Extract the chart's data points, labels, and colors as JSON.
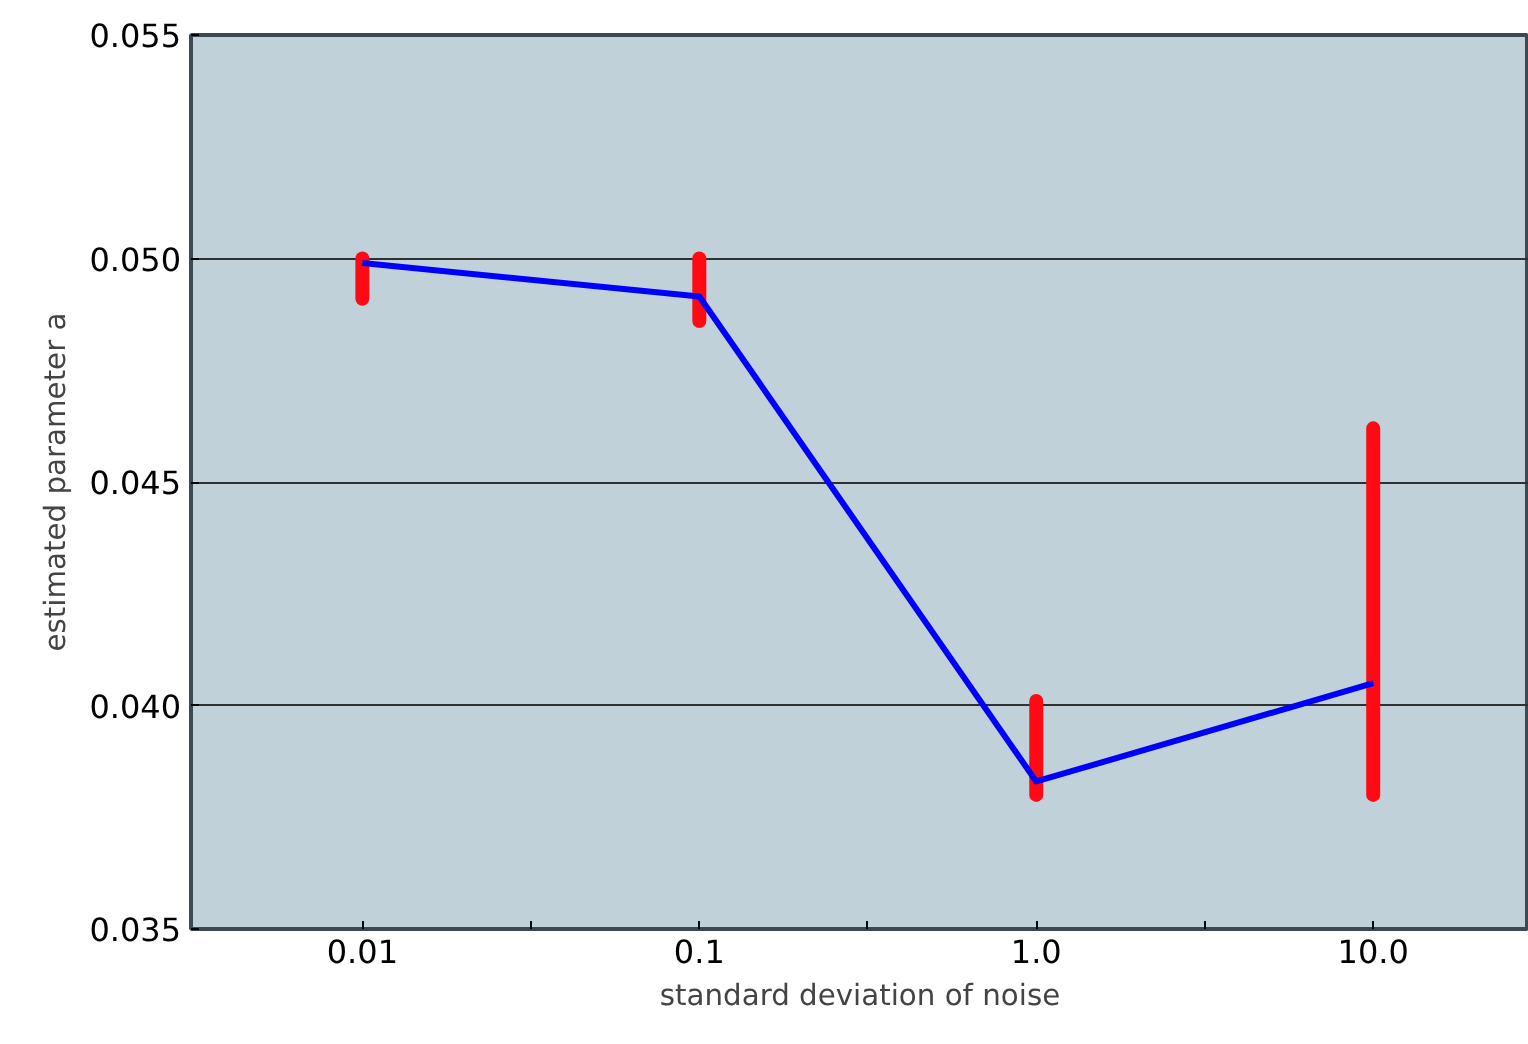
{
  "chart_data": {
    "type": "line",
    "xlabel": "standard deviation of noise",
    "ylabel": "estimated parameter a",
    "x": [
      0.01,
      0.1,
      1.0,
      10.0
    ],
    "series": [
      {
        "color": "#0000ff",
        "values": [
          0.0499,
          0.04915,
          0.0383,
          0.0405
        ],
        "errors": [
          [
            0.0491,
            0.05
          ],
          [
            0.0486,
            0.05
          ],
          [
            0.038,
            0.0401
          ],
          [
            0.038,
            0.0462
          ]
        ]
      }
    ],
    "log": "x",
    "xlim": [
      0.0031,
      29
    ],
    "xticks": [
      {
        "value": 0.01,
        "label": "0.01"
      },
      {
        "value": 0.0316,
        "label": null
      },
      {
        "value": 0.1,
        "label": "0.1"
      },
      {
        "value": 0.316,
        "label": null
      },
      {
        "value": 1.0,
        "label": "1.0"
      },
      {
        "value": 3.16,
        "label": null
      },
      {
        "value": 10.0,
        "label": "10.0"
      }
    ],
    "ylim": [
      0.035,
      0.055
    ],
    "yticks": [
      {
        "value": 0.035,
        "label": "0.035"
      },
      {
        "value": 0.04,
        "label": "0.040"
      },
      {
        "value": 0.045,
        "label": "0.045"
      },
      {
        "value": 0.05,
        "label": "0.050"
      },
      {
        "value": 0.055,
        "label": "0.055"
      }
    ],
    "grid": "y",
    "marker": "none",
    "line_style": "solid"
  }
}
